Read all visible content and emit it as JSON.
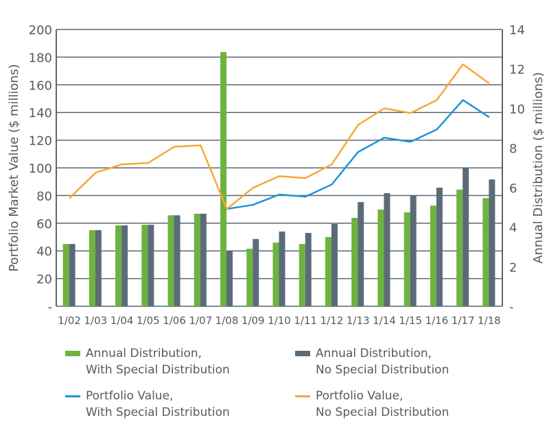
{
  "chart_data": {
    "type": "bar+line",
    "categories": [
      "1/02",
      "1/03",
      "1/04",
      "1/05",
      "1/06",
      "1/07",
      "1/08",
      "1/09",
      "1/10",
      "1/11",
      "1/12",
      "1/13",
      "1/14",
      "1/15",
      "1/16",
      "1/17",
      "1/18"
    ],
    "ylabel_left": "Portfolio Market Value ($ millions)",
    "ylabel_right": "Annual Distribution ($ millions)",
    "ylim_left": [
      0,
      200
    ],
    "ylim_right": [
      0,
      14
    ],
    "yticks_left": [
      "-",
      "20",
      "40",
      "60",
      "80",
      "100",
      "120",
      "140",
      "160",
      "180",
      "200"
    ],
    "yticks_right": [
      "-",
      "2",
      "4",
      "6",
      "8",
      "10",
      "12",
      "14"
    ],
    "grid": true,
    "legend_placement": "bottom",
    "bar_series": [
      {
        "name": "Annual Distribution, With Special Distribution",
        "legend_lines": [
          "Annual Distribution,",
          "With Special Distribution"
        ],
        "axis": "right",
        "color": "#6db33f",
        "values": [
          3.15,
          3.85,
          4.09,
          4.12,
          4.6,
          4.68,
          12.86,
          2.91,
          3.22,
          3.15,
          3.5,
          4.47,
          4.89,
          4.75,
          5.09,
          5.9,
          5.47
        ]
      },
      {
        "name": "Annual Distribution, No Special Distribution",
        "legend_lines": [
          "Annual Distribution,",
          "No Special Distribution"
        ],
        "axis": "right",
        "color": "#5b6b79",
        "values": [
          3.15,
          3.85,
          4.09,
          4.12,
          4.6,
          4.68,
          2.8,
          3.4,
          3.78,
          3.71,
          4.16,
          5.27,
          5.72,
          5.58,
          6.0,
          7.0,
          6.41
        ]
      }
    ],
    "line_series": [
      {
        "name": "Portfolio Value, With Special Distribution",
        "legend_lines": [
          "Portfolio Value,",
          "With Special Distribution"
        ],
        "axis": "left",
        "color": "#1a95d8",
        "values": [
          null,
          null,
          null,
          null,
          null,
          null,
          70.3,
          73.3,
          80.7,
          79.2,
          88,
          111.4,
          121.8,
          118.8,
          127.7,
          149,
          136.6
        ]
      },
      {
        "name": "Portfolio Value, No Special Distribution",
        "legend_lines": [
          "Portfolio Value,",
          "No Special Distribution"
        ],
        "axis": "left",
        "color": "#f7a833",
        "values": [
          78,
          96.5,
          102.5,
          103.5,
          115.3,
          116.3,
          70.3,
          85.6,
          94,
          92.6,
          102.5,
          131,
          143,
          139.6,
          149,
          174.8,
          161
        ]
      }
    ]
  }
}
